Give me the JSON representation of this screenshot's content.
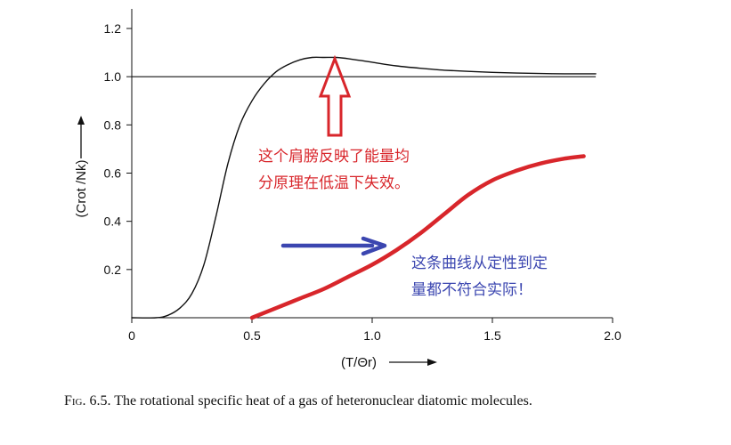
{
  "chart_data": {
    "type": "line",
    "xlabel": "(T/Θr)",
    "ylabel": "(Crot /Nk)",
    "xlim": [
      0,
      2.0
    ],
    "ylim": [
      0,
      1.25
    ],
    "x_ticks": [
      "0",
      "0.5",
      "1.0",
      "1.5",
      "2.0"
    ],
    "y_ticks": [
      "0.2",
      "0.4",
      "0.6",
      "0.8",
      "1.0",
      "1.2"
    ],
    "reference_line": {
      "y": 1.0,
      "x_range": [
        0,
        1.93
      ]
    },
    "series": [
      {
        "style": "thin black",
        "color": "#111111",
        "x": [
          0.0,
          0.1,
          0.15,
          0.2,
          0.25,
          0.3,
          0.35,
          0.4,
          0.45,
          0.5,
          0.55,
          0.6,
          0.65,
          0.7,
          0.75,
          0.8,
          0.85,
          0.9,
          1.0,
          1.1,
          1.2,
          1.3,
          1.4,
          1.5,
          1.6,
          1.7,
          1.8,
          1.93
        ],
        "y": [
          0.0,
          0.0,
          0.01,
          0.04,
          0.1,
          0.22,
          0.42,
          0.64,
          0.8,
          0.9,
          0.97,
          1.02,
          1.05,
          1.07,
          1.08,
          1.08,
          1.08,
          1.075,
          1.06,
          1.045,
          1.035,
          1.027,
          1.022,
          1.018,
          1.015,
          1.013,
          1.012,
          1.012
        ]
      },
      {
        "style": "thick red (annotation)",
        "color": "#d8262b",
        "x": [
          0.5,
          0.6,
          0.7,
          0.8,
          0.9,
          1.0,
          1.1,
          1.2,
          1.3,
          1.4,
          1.5,
          1.6,
          1.7,
          1.8,
          1.88
        ],
        "y": [
          0.0,
          0.04,
          0.08,
          0.12,
          0.17,
          0.22,
          0.28,
          0.35,
          0.43,
          0.51,
          0.57,
          0.61,
          0.64,
          0.66,
          0.67
        ]
      }
    ],
    "annotations": {
      "red_lines": [
        "这个肩膀反映了能量均",
        "分原理在低温下失效。"
      ],
      "blue_lines": [
        "这条曲线从定性到定",
        "量都不符合实际！"
      ]
    }
  },
  "colors": {
    "red": "#d8262b",
    "blue": "#3b46b0",
    "black": "#111111"
  },
  "caption": {
    "fig_label": "Fig. 6.5.",
    "text": "The rotational specific heat of a gas of heteronuclear diatomic molecules."
  }
}
